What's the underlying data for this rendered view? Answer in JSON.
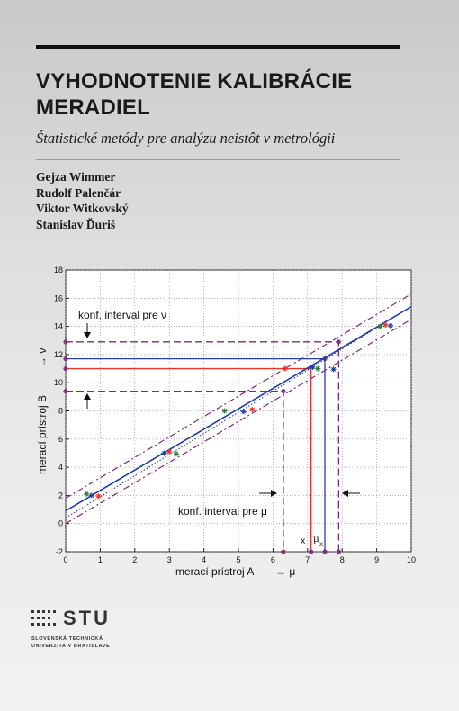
{
  "cover": {
    "title_lines": [
      "VYHODNOTENIE KALIBRÁCIE",
      "MERADIEL"
    ],
    "subtitle": "Štatistické metódy pre analýzu neistôt v metrológii",
    "authors": [
      "Gejza Wimmer",
      "Rudolf Palenčár",
      "Viktor Witkovský",
      "Stanislav Ďuriš"
    ],
    "colors": {
      "text": "#1a1a1a",
      "background_top": "#c9c9c9",
      "background_bottom": "#f2f2f2"
    }
  },
  "publisher": {
    "logo_text": "STU",
    "name_lines": [
      "SLOVENSKÁ TECHNICKÁ",
      "UNIVERZITA V BRATISLAVE"
    ]
  },
  "chart_data": {
    "type": "scatter",
    "xlabel": "merací prístroj A",
    "ylabel": "merací prístroj B",
    "xlim": [
      0,
      10
    ],
    "ylim": [
      -2,
      18
    ],
    "xticks": [
      0,
      1,
      2,
      3,
      4,
      5,
      6,
      7,
      8,
      9,
      10
    ],
    "yticks": [
      -2,
      0,
      2,
      4,
      6,
      8,
      10,
      12,
      14,
      16,
      18
    ],
    "x_arrow_label": "→ μ",
    "y_arrow_label": "→ ν",
    "grid": true,
    "annotations": {
      "conf_interval_nu": "konf. interval pre ν",
      "conf_interval_mu": "konf. interval pre μ",
      "x_marker": "x",
      "mu_marker": "μ",
      "mu_subscript": "x"
    },
    "fit_line": {
      "intercept": 0.9,
      "slope": 1.45,
      "color": "#1f3fa8"
    },
    "dotted_line": {
      "intercept": 0.4,
      "slope": 1.5,
      "color": "#2a2a9a"
    },
    "confidence_band": {
      "upper_intercept": 1.8,
      "lower_intercept": 0.0,
      "slope": 1.45,
      "color": "#7a2a7a"
    },
    "guides": {
      "red": {
        "x": 7.1,
        "y": 11.0,
        "color": "#e8322a"
      },
      "blue": {
        "x": 7.5,
        "y": 11.7,
        "color": "#2a3fb0"
      },
      "purple": {
        "x_low": 6.3,
        "x_high": 7.9,
        "y_low": 9.4,
        "y_high": 12.9,
        "color": "#7a2a7a"
      }
    },
    "points": [
      {
        "x": 0.6,
        "y": 2.1,
        "color": "#2e7d32"
      },
      {
        "x": 0.75,
        "y": 2.0,
        "color": "#1f3fa8"
      },
      {
        "x": 0.95,
        "y": 1.95,
        "color": "#e8322a"
      },
      {
        "x": 2.85,
        "y": 5.0,
        "color": "#1f3fa8"
      },
      {
        "x": 3.0,
        "y": 5.1,
        "color": "#e8322a"
      },
      {
        "x": 3.2,
        "y": 4.95,
        "color": "#2e7d32"
      },
      {
        "x": 4.6,
        "y": 8.0,
        "color": "#2e7d32"
      },
      {
        "x": 5.15,
        "y": 7.95,
        "color": "#1f3fa8"
      },
      {
        "x": 5.4,
        "y": 8.1,
        "color": "#e8322a"
      },
      {
        "x": 6.35,
        "y": 11.0,
        "color": "#e8322a"
      },
      {
        "x": 7.15,
        "y": 11.1,
        "color": "#1f3fa8"
      },
      {
        "x": 7.3,
        "y": 11.0,
        "color": "#2e7d32"
      },
      {
        "x": 7.75,
        "y": 10.95,
        "color": "#1f3fa8"
      },
      {
        "x": 9.1,
        "y": 14.0,
        "color": "#2e7d32"
      },
      {
        "x": 9.25,
        "y": 14.1,
        "color": "#e8322a"
      },
      {
        "x": 9.4,
        "y": 14.05,
        "color": "#1f3fa8"
      }
    ]
  }
}
